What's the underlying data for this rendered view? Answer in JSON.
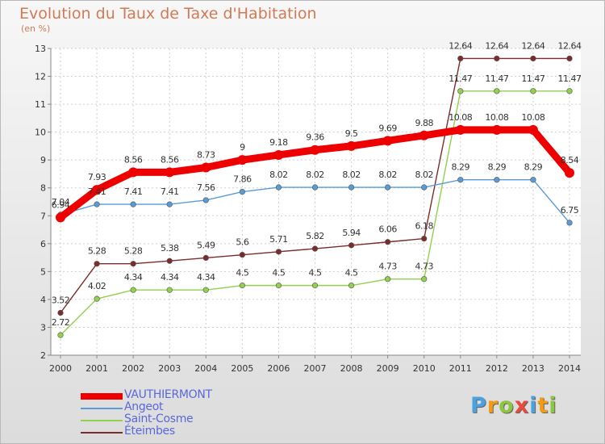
{
  "title": "Evolution du Taux de Taxe d'Habitation",
  "subtitle": "(en %)",
  "chart_data": {
    "type": "line",
    "x": [
      "2000",
      "2001",
      "2002",
      "2003",
      "2004",
      "2005",
      "2006",
      "2007",
      "2008",
      "2009",
      "2010",
      "2011",
      "2012",
      "2013",
      "2014"
    ],
    "ylim": [
      2,
      13
    ],
    "yticks": [
      "2",
      "3",
      "4",
      "5",
      "6",
      "7",
      "8",
      "9",
      "10",
      "11",
      "12",
      "13"
    ],
    "grid": true,
    "legend_position": "bottom-left",
    "series": [
      {
        "name": "VAUTHIERMONT",
        "color": "#ee0000",
        "values": [
          6.94,
          7.93,
          8.56,
          8.56,
          8.73,
          9,
          9.18,
          9.36,
          9.5,
          9.69,
          9.88,
          10.08,
          10.08,
          10.08,
          8.54
        ],
        "labels": [
          "6.94",
          "7.93",
          "8.56",
          "8.56",
          "8.73",
          "9",
          "9.18",
          "9.36",
          "9.5",
          "9.69",
          "9.88",
          "10.08",
          "10.08",
          "10.08",
          "8.54"
        ]
      },
      {
        "name": "Angeot",
        "color": "#5b9bd5",
        "values": [
          7.04,
          7.41,
          7.41,
          7.41,
          7.56,
          7.86,
          8.02,
          8.02,
          8.02,
          8.02,
          8.02,
          8.29,
          8.29,
          8.29,
          6.75
        ],
        "labels": [
          "7.04",
          "7.41",
          "7.41",
          "7.41",
          "7.56",
          "7.86",
          "8.02",
          "8.02",
          "8.02",
          "8.02",
          "8.02",
          "8.29",
          "8.29",
          "8.29",
          "6.75"
        ]
      },
      {
        "name": "Saint-Cosme",
        "color": "#92d050",
        "values": [
          2.72,
          4.02,
          4.34,
          4.34,
          4.34,
          4.5,
          4.5,
          4.5,
          4.5,
          4.73,
          4.73,
          11.47,
          11.47,
          11.47,
          11.47
        ],
        "labels": [
          "2.72",
          "4.02",
          "4.34",
          "4.34",
          "4.34",
          "4.5",
          "4.5",
          "4.5",
          "4.5",
          "4.73",
          "4.73",
          "11.47",
          "11.47",
          "11.47",
          "11.47"
        ]
      },
      {
        "name": "Éteimbes",
        "color": "#7b2c2c",
        "values": [
          3.52,
          5.28,
          5.28,
          5.38,
          5.49,
          5.6,
          5.71,
          5.82,
          5.94,
          6.06,
          6.18,
          12.64,
          12.64,
          12.64,
          12.64
        ],
        "labels": [
          "3.52",
          "5.28",
          "5.28",
          "5.38",
          "5.49",
          "5.6",
          "5.71",
          "5.82",
          "5.94",
          "6.06",
          "6.18",
          "12.64",
          "12.64",
          "12.64",
          "12.64"
        ]
      }
    ]
  },
  "logo": {
    "letters": [
      "P",
      "r",
      "o",
      "x",
      "i",
      "t",
      "i"
    ],
    "colors": [
      "#4aa3df",
      "#f39c12",
      "#8dc63f",
      "#e74c3c",
      "#4aa3df",
      "#f39c12",
      "#8dc63f"
    ]
  }
}
